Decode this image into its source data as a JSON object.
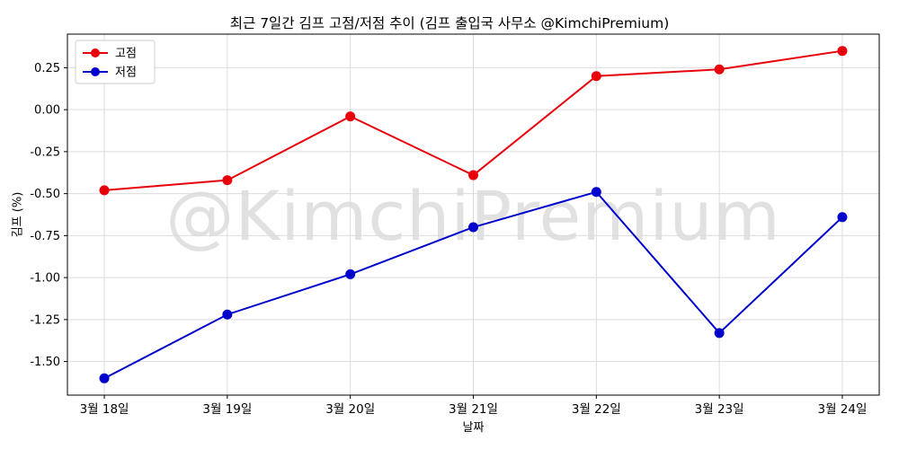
{
  "chart_data": {
    "type": "line",
    "title": "최근 7일간 김프 고점/저점 추이 (김프 출입국 사무소 @KimchiPremium)",
    "xlabel": "날짜",
    "ylabel": "김프 (%)",
    "watermark": "@KimchiPremium",
    "categories": [
      "3월 18일",
      "3월 19일",
      "3월 20일",
      "3월 21일",
      "3월 22일",
      "3월 23일",
      "3월 24일"
    ],
    "series": [
      {
        "name": "고점",
        "color": "#e8000b",
        "values": [
          -0.48,
          -0.42,
          -0.04,
          -0.39,
          0.2,
          0.24,
          0.35
        ]
      },
      {
        "name": "저점",
        "color": "#0000cc",
        "values": [
          -1.6,
          -1.22,
          -0.98,
          -0.7,
          -0.49,
          -1.33,
          -0.64
        ]
      }
    ],
    "yticks": [
      0.25,
      0.0,
      -0.25,
      -0.5,
      -0.75,
      -1.0,
      -1.25,
      -1.5
    ],
    "ylim": [
      -1.7,
      0.45
    ],
    "xlim": [
      -0.3,
      6.3
    ],
    "grid": true,
    "grid_color": "#dcdcdc",
    "legend_position": "upper left",
    "marker": "circle"
  }
}
